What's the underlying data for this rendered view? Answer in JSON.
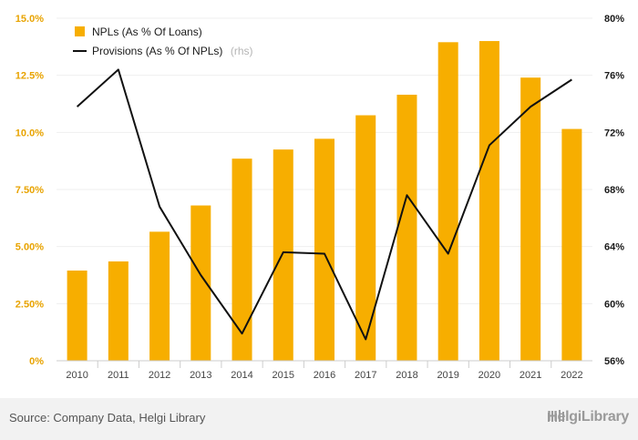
{
  "chart_data": {
    "type": "bar",
    "categories": [
      "2010",
      "2011",
      "2012",
      "2013",
      "2014",
      "2015",
      "2016",
      "2017",
      "2018",
      "2019",
      "2020",
      "2021",
      "2022"
    ],
    "series": [
      {
        "name": "NPLs (As % Of Loans)",
        "type": "bar",
        "axis": "left",
        "color": "#f7ae00",
        "values": [
          3.95,
          4.35,
          5.65,
          6.8,
          8.85,
          9.25,
          9.72,
          10.75,
          11.65,
          13.95,
          14.0,
          12.4,
          10.15
        ]
      },
      {
        "name": "Provisions (As % Of NPLs)",
        "name_suffix": "(rhs)",
        "type": "line",
        "axis": "right",
        "color": "#111111",
        "values": [
          73.8,
          76.4,
          66.8,
          62.0,
          57.9,
          63.6,
          63.5,
          57.5,
          67.6,
          63.5,
          71.1,
          73.8,
          75.7
        ]
      }
    ],
    "left_axis": {
      "ylim": [
        0,
        15
      ],
      "ticks": [
        "0%",
        "2.50%",
        "5.00%",
        "7.50%",
        "10.0%",
        "12.5%",
        "15.0%"
      ]
    },
    "right_axis": {
      "ylim": [
        56,
        80
      ],
      "ticks": [
        "56%",
        "60%",
        "64%",
        "68%",
        "72%",
        "76%",
        "80%"
      ]
    },
    "legend_placement": "top-left",
    "grid": "horizontal-faint"
  },
  "footer": {
    "source": "Source: Company Data, Helgi Library",
    "brand": "HelgiLibrary"
  }
}
